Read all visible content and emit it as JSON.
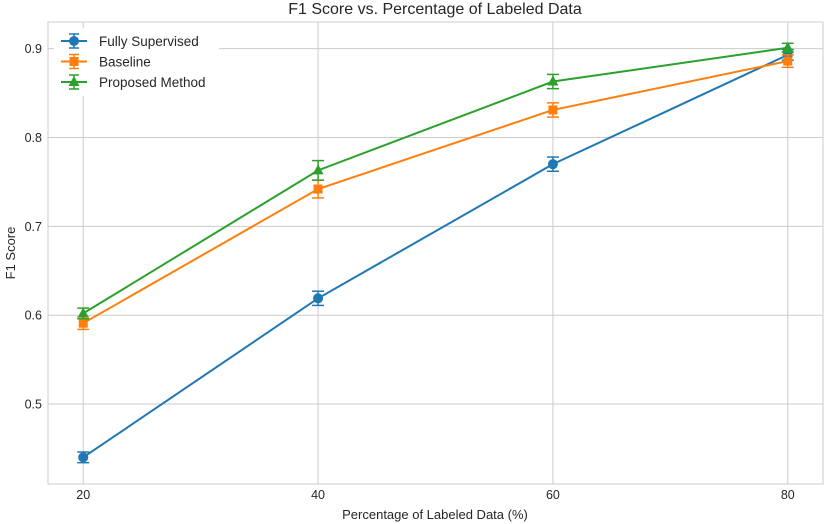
{
  "chart_data": {
    "type": "line",
    "title": "F1 Score vs. Percentage of Labeled Data",
    "xlabel": "Percentage of Labeled Data (%)",
    "ylabel": "F1 Score",
    "x": [
      20,
      40,
      60,
      80
    ],
    "xticks": [
      20,
      40,
      60,
      80
    ],
    "yticks": [
      0.5,
      0.6,
      0.7,
      0.8,
      0.9
    ],
    "xlim": [
      17,
      83
    ],
    "ylim": [
      0.41,
      0.93
    ],
    "grid": true,
    "legend_position": "top-left",
    "series": [
      {
        "name": "Fully Supervised",
        "color": "#1f77b4",
        "marker": "circle",
        "values": [
          0.44,
          0.619,
          0.77,
          0.893
        ],
        "errors": [
          0.006,
          0.008,
          0.008,
          0.006
        ]
      },
      {
        "name": "Baseline",
        "color": "#ff7f0e",
        "marker": "square",
        "values": [
          0.591,
          0.742,
          0.831,
          0.886
        ],
        "errors": [
          0.007,
          0.01,
          0.008,
          0.007
        ]
      },
      {
        "name": "Proposed Method",
        "color": "#2ca02c",
        "marker": "triangle",
        "values": [
          0.602,
          0.763,
          0.863,
          0.901
        ],
        "errors": [
          0.006,
          0.011,
          0.008,
          0.005
        ]
      }
    ]
  }
}
